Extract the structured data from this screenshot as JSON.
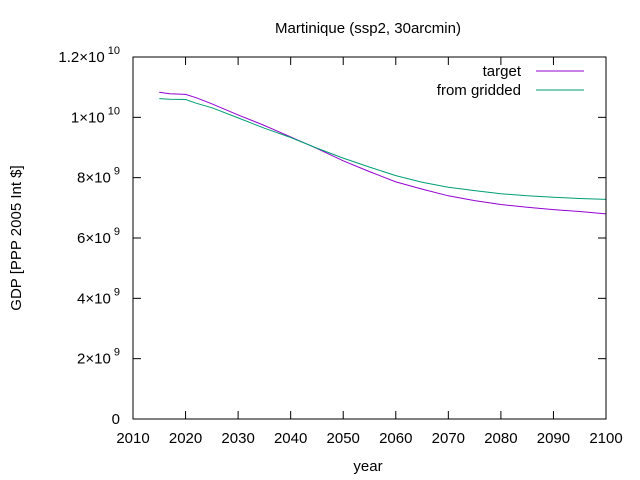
{
  "chart_data": {
    "type": "line",
    "title": "Martinique (ssp2, 30arcmin)",
    "xlabel": "year",
    "ylabel": "GDP [PPP 2005 Int $]",
    "xlim": [
      2010,
      2100
    ],
    "ylim": [
      0,
      12000000000
    ],
    "grid": false,
    "legend_placement": "top-right",
    "x_ticks": [
      2010,
      2020,
      2030,
      2040,
      2050,
      2060,
      2070,
      2080,
      2090,
      2100
    ],
    "x_tick_labels": [
      "2010",
      "2020",
      "2030",
      "2040",
      "2050",
      "2060",
      "2070",
      "2080",
      "2090",
      "2100"
    ],
    "y_ticks": [
      {
        "value": 0,
        "mantissa": "0",
        "exponent": ""
      },
      {
        "value": 2000000000,
        "mantissa": "2×10",
        "exponent": "9"
      },
      {
        "value": 4000000000,
        "mantissa": "4×10",
        "exponent": "9"
      },
      {
        "value": 6000000000,
        "mantissa": "6×10",
        "exponent": "9"
      },
      {
        "value": 8000000000,
        "mantissa": "8×10",
        "exponent": "9"
      },
      {
        "value": 10000000000,
        "mantissa": "1×10",
        "exponent": "10"
      },
      {
        "value": 12000000000,
        "mantissa": "1.2×10",
        "exponent": "10"
      }
    ],
    "series": [
      {
        "name": "target",
        "color": "#9400d3",
        "x": [
          2015,
          2017,
          2020,
          2022,
          2025,
          2030,
          2035,
          2040,
          2045,
          2050,
          2055,
          2060,
          2065,
          2070,
          2075,
          2080,
          2085,
          2090,
          2095,
          2100
        ],
        "y": [
          10830000000,
          10780000000,
          10760000000,
          10650000000,
          10450000000,
          10080000000,
          9730000000,
          9350000000,
          8970000000,
          8560000000,
          8200000000,
          7860000000,
          7620000000,
          7400000000,
          7240000000,
          7110000000,
          7020000000,
          6940000000,
          6880000000,
          6800000000
        ]
      },
      {
        "name": "from gridded",
        "color": "#009e73",
        "x": [
          2015,
          2017,
          2020,
          2022,
          2025,
          2030,
          2035,
          2040,
          2045,
          2050,
          2055,
          2060,
          2065,
          2070,
          2075,
          2080,
          2085,
          2090,
          2095,
          2100
        ],
        "y": [
          10620000000,
          10600000000,
          10590000000,
          10470000000,
          10320000000,
          9980000000,
          9640000000,
          9330000000,
          8980000000,
          8650000000,
          8350000000,
          8070000000,
          7850000000,
          7680000000,
          7570000000,
          7470000000,
          7400000000,
          7350000000,
          7310000000,
          7280000000
        ]
      }
    ]
  }
}
